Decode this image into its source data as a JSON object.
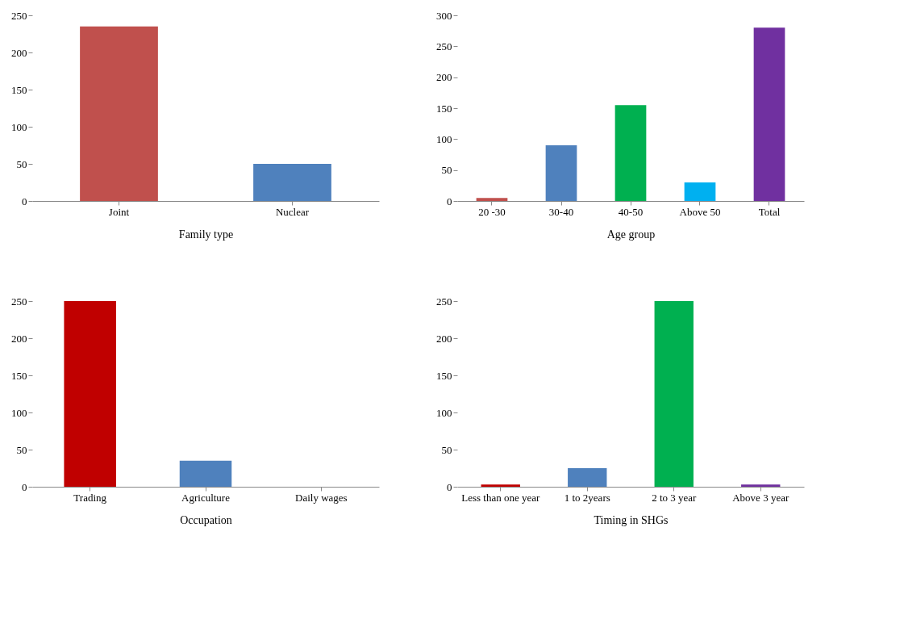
{
  "chart_data": [
    {
      "type": "bar",
      "xlabel": "Family type",
      "categories": [
        "Joint",
        "Nuclear"
      ],
      "values": [
        235,
        50
      ],
      "colors": [
        "#c0504d",
        "#4f81bd"
      ],
      "ylim": [
        0,
        250
      ],
      "yticks": [
        0,
        50,
        100,
        150,
        200,
        250
      ]
    },
    {
      "type": "bar",
      "xlabel": "Age group",
      "categories": [
        "20 -30",
        "30-40",
        "40-50",
        "Above 50",
        "Total"
      ],
      "values": [
        5,
        90,
        155,
        30,
        280
      ],
      "colors": [
        "#c0504d",
        "#4f81bd",
        "#00b050",
        "#00b0f0",
        "#7030a0"
      ],
      "ylim": [
        0,
        300
      ],
      "yticks": [
        0,
        50,
        100,
        150,
        200,
        250,
        300
      ]
    },
    {
      "type": "bar",
      "xlabel": "Occupation",
      "categories": [
        "Trading",
        "Agriculture",
        "Daily wages"
      ],
      "values": [
        250,
        35,
        0
      ],
      "colors": [
        "#c00000",
        "#4f81bd",
        "#9bbb59"
      ],
      "ylim": [
        0,
        250
      ],
      "yticks": [
        0,
        50,
        100,
        150,
        200,
        250
      ]
    },
    {
      "type": "bar",
      "xlabel": "Timing in SHGs",
      "categories": [
        "Less than one year",
        "1 to 2years",
        "2 to 3 year",
        "Above 3 year"
      ],
      "values": [
        3,
        25,
        250,
        3
      ],
      "colors": [
        "#c00000",
        "#4f81bd",
        "#00b050",
        "#7030a0"
      ],
      "ylim": [
        0,
        250
      ],
      "yticks": [
        0,
        50,
        100,
        150,
        200,
        250
      ]
    }
  ]
}
